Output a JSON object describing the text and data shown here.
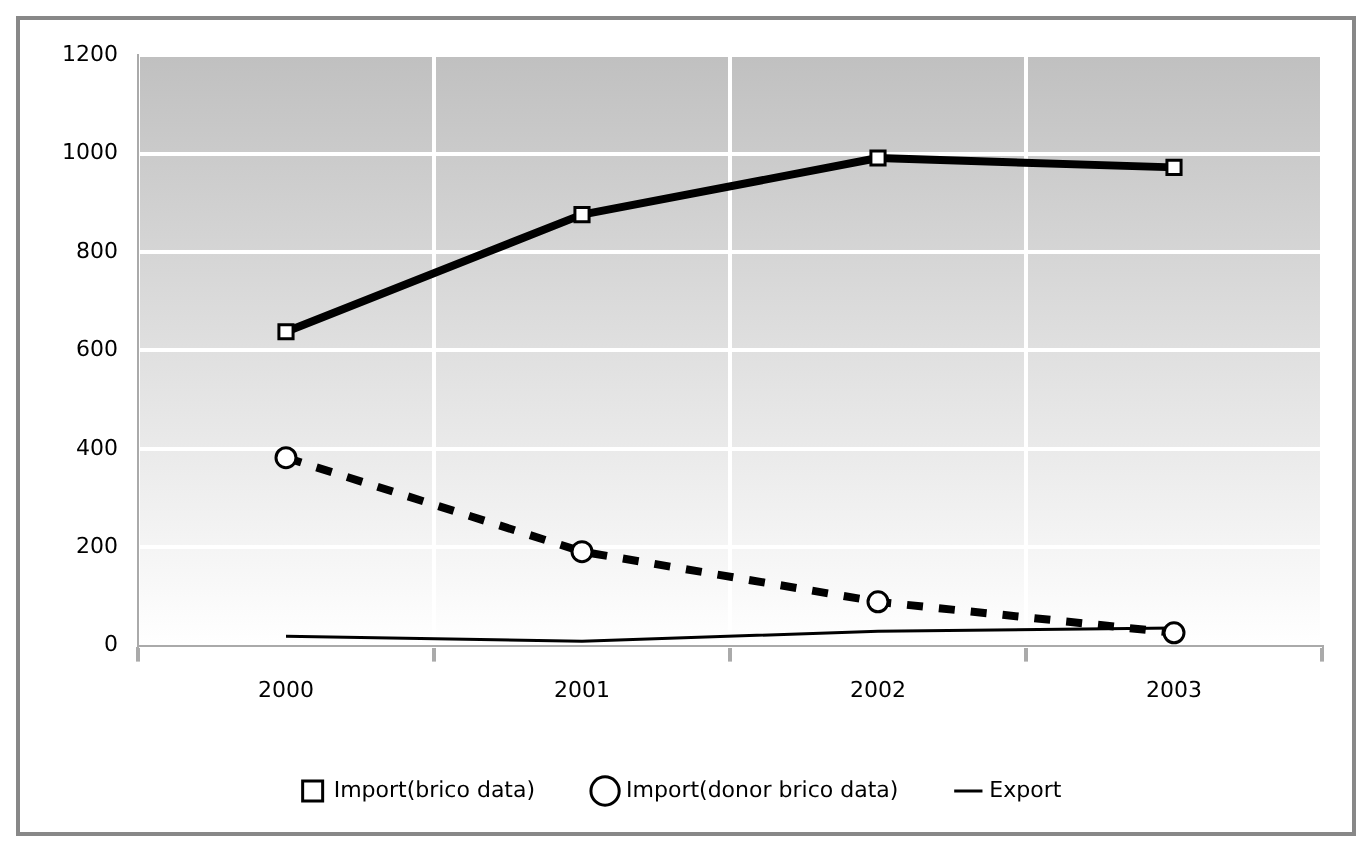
{
  "chart_data": {
    "type": "line",
    "categories": [
      "2000",
      "2001",
      "2002",
      "2003"
    ],
    "series": [
      {
        "name": "Import(brico data)",
        "color": "#000000",
        "values": [
          638,
          876,
          991,
          972
        ],
        "marker": "square",
        "line_style": "solid"
      },
      {
        "name": "Import(donor brico data)",
        "color": "#000000",
        "values": [
          382,
          191,
          89,
          26
        ],
        "marker": "circle",
        "line_style": "dashed"
      },
      {
        "name": "Export",
        "color": "#000000",
        "values": [
          19,
          9,
          29,
          36
        ],
        "marker": "none",
        "line_style": "solid"
      }
    ],
    "ylim": [
      0,
      1200
    ],
    "yticks": [
      0,
      200,
      400,
      600,
      800,
      1000,
      1200
    ],
    "grid": true,
    "legend": "bottom"
  }
}
